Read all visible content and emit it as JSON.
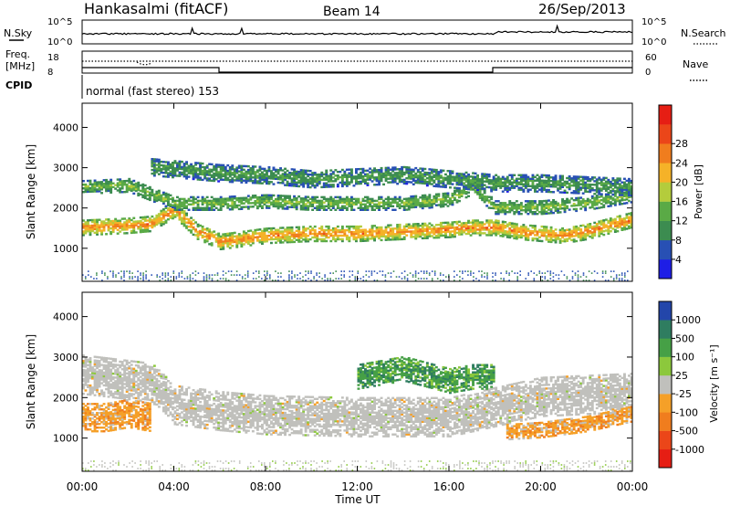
{
  "header": {
    "station": "Hankasalmi (fitACF)",
    "beam": "Beam 14",
    "date": "26/Sep/2013"
  },
  "top_panels": {
    "nsky_label": "N.Sky",
    "nsearch_label": "N.Search",
    "freq_label_1": "Freq.",
    "freq_label_2": "[MHz]",
    "nave_label": "Nave",
    "cpid_label": "CPID",
    "cpid_text": "normal (fast stereo) 153",
    "noise_ticks": [
      "10^5",
      "10^0"
    ],
    "freq_ticks": [
      "18",
      "8"
    ],
    "nave_ticks": [
      "60",
      "0"
    ]
  },
  "axes": {
    "xlabel": "Time UT",
    "ylabel": "Slant Range [km]",
    "x_ticks": [
      "00:00",
      "04:00",
      "08:00",
      "12:00",
      "16:00",
      "20:00",
      "00:00"
    ],
    "y_ticks": [
      "1000",
      "2000",
      "3000",
      "4000"
    ]
  },
  "power_scale": {
    "title": "Power [dB]",
    "labels": [
      "4",
      "8",
      "12",
      "16",
      "20",
      "24",
      "28"
    ],
    "colors": [
      "#1e1ee6",
      "#2850b4",
      "#3c8c50",
      "#5aaa46",
      "#b4cc3c",
      "#f5b228",
      "#f07d1e",
      "#eb4619",
      "#e61e14"
    ]
  },
  "velocity_scale": {
    "title": "Velocity [m s⁻¹]",
    "labels": [
      "1000",
      "500",
      "100",
      "25",
      "-25",
      "-100",
      "-500",
      "-1000"
    ],
    "colors": [
      "#2346aa",
      "#2f7d60",
      "#46a046",
      "#8cc83c",
      "#c0c0bc",
      "#f5a028",
      "#f07d1e",
      "#eb4619",
      "#e61e14"
    ]
  },
  "chart_data": [
    {
      "type": "heatmap",
      "title": "Power [dB]",
      "xlabel": "Time UT",
      "ylabel": "Slant Range [km]",
      "xlim_hours": [
        0,
        24
      ],
      "ylim_km": [
        180,
        4600
      ],
      "legend": "right colorbar",
      "bands": [
        {
          "name": "main",
          "x_hours": [
            0,
            2,
            3,
            4,
            5,
            6,
            8,
            10,
            12,
            14,
            16,
            17,
            18,
            19,
            20,
            21,
            22,
            23,
            24
          ],
          "y_km": [
            1500,
            1550,
            1600,
            1950,
            1400,
            1150,
            1300,
            1350,
            1350,
            1400,
            1450,
            1500,
            1500,
            1400,
            1350,
            1300,
            1400,
            1550,
            1700
          ],
          "width_km": 380,
          "value_db": 24
        },
        {
          "name": "upper",
          "x_hours": [
            0,
            2,
            4,
            6,
            8,
            10,
            12,
            14,
            16,
            17,
            18,
            20,
            22,
            24
          ],
          "y_km": [
            2500,
            2550,
            2100,
            2100,
            2150,
            2100,
            2100,
            2100,
            2200,
            2500,
            2000,
            2000,
            2100,
            2300
          ],
          "width_km": 330,
          "value_db": 14
        },
        {
          "name": "top",
          "x_hours": [
            3,
            6,
            8,
            10,
            12,
            14,
            16,
            18,
            20,
            24
          ],
          "y_km": [
            3000,
            2850,
            2800,
            2700,
            2750,
            2800,
            2700,
            2600,
            2600,
            2500
          ],
          "width_km": 420,
          "value_db": 10
        }
      ]
    },
    {
      "type": "heatmap",
      "title": "Velocity [m s⁻¹]",
      "xlabel": "Time UT",
      "ylabel": "Slant Range [km]",
      "xlim_hours": [
        0,
        24
      ],
      "ylim_km": [
        180,
        4600
      ],
      "legend": "right colorbar",
      "bands": [
        {
          "name": "ground",
          "x_hours": [
            0,
            3,
            4,
            6,
            8,
            12,
            16,
            18,
            20,
            24
          ],
          "y_km": [
            2550,
            2350,
            1800,
            1650,
            1550,
            1500,
            1500,
            1750,
            2000,
            2100
          ],
          "width_km": 950,
          "value": 0
        },
        {
          "name": "ionospheric",
          "x_hours": [
            12,
            14,
            16,
            17,
            18
          ],
          "y_km": [
            2500,
            2700,
            2400,
            2500,
            2500
          ],
          "width_km": 600,
          "value": 150
        },
        {
          "name": "evening",
          "x_hours": [
            18.5,
            20,
            22,
            24
          ],
          "y_km": [
            1150,
            1200,
            1350,
            1600
          ],
          "width_km": 400,
          "value": -150
        },
        {
          "name": "morning",
          "x_hours": [
            0,
            1,
            2,
            3
          ],
          "y_km": [
            1500,
            1500,
            1600,
            1500
          ],
          "width_km": 700,
          "value": -150
        }
      ]
    }
  ]
}
